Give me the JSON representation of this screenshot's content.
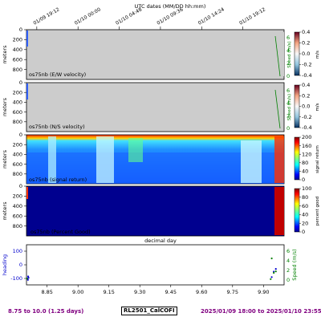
{
  "chart_data": {
    "type": "heatmap",
    "top_axis": {
      "title": "UTC dates (MM/DD hh:mm)",
      "ticks": [
        "01/09 19:12",
        "01/10 00:00",
        "01/10 04:48",
        "01/10 09:36",
        "01/10 14:24",
        "01/10 19:12"
      ],
      "tick_days": [
        8.8,
        9.0,
        9.2,
        9.4,
        9.6,
        9.8
      ]
    },
    "x_axis": {
      "label": "decimal day",
      "range": [
        8.75,
        10.0
      ],
      "ticks": [
        "8.85",
        "9.00",
        "9.15",
        "9.30",
        "9.45",
        "9.60",
        "9.75",
        "9.90"
      ],
      "tick_values": [
        8.85,
        9.0,
        9.15,
        9.3,
        9.45,
        9.6,
        9.75,
        9.9
      ]
    },
    "depth_axis": {
      "label": "meters",
      "range": [
        0,
        1000
      ],
      "ticks": [
        "0",
        "200",
        "400",
        "600",
        "800"
      ]
    },
    "panels": [
      {
        "id": "ew",
        "title": "os75nb (E/W velocity)",
        "colorbar": {
          "label": "m/s",
          "ticks": [
            "0.4",
            "0.2",
            "0.0",
            "-0.2",
            "-0.4"
          ],
          "range": [
            -0.4,
            0.4
          ],
          "colormap": "RdBu"
        },
        "speed_axis": {
          "label": "Speed (m/s)",
          "ticks": [
            "6",
            "4",
            "2",
            "0"
          ]
        },
        "data_coverage_days": [
          [
            8.75,
            8.76
          ],
          [
            9.93,
            10.0
          ]
        ],
        "no_data_color": "#cccccc"
      },
      {
        "id": "ns",
        "title": "os75nb (N/S velocity)",
        "colorbar": {
          "label": "m/s",
          "ticks": [
            "0.4",
            "0.2",
            "0.0",
            "-0.2",
            "-0.4"
          ],
          "range": [
            -0.4,
            0.4
          ],
          "colormap": "RdBu"
        },
        "speed_axis": {
          "label": "Speed (m/s)",
          "ticks": [
            "6",
            "4",
            "2",
            "0"
          ]
        },
        "data_coverage_days": [
          [
            8.75,
            8.76
          ],
          [
            9.93,
            10.0
          ]
        ],
        "no_data_color": "#cccccc"
      },
      {
        "id": "amp",
        "title": "os75nb (signal return)",
        "colorbar": {
          "label": "signal return",
          "ticks": [
            "200",
            "160",
            "120",
            "80",
            "40",
            "0"
          ],
          "range": [
            0,
            200
          ],
          "colormap": "jet"
        }
      },
      {
        "id": "pg",
        "title": "os75nb (Percent Good)",
        "colorbar": {
          "label": "percent good",
          "ticks": [
            "100",
            "80",
            "60",
            "40",
            "20",
            "0"
          ],
          "range": [
            0,
            100
          ],
          "colormap": "jet"
        }
      }
    ],
    "heading_panel": {
      "ylabel": "heading",
      "y_ticks": [
        "100",
        "0",
        "-100"
      ],
      "y_tick_values": [
        100,
        0,
        -100
      ],
      "right_label": "Speed (m/s)",
      "right_ticks": [
        "6",
        "4",
        "2",
        "0"
      ],
      "series": [
        {
          "name": "heading",
          "color": "#0000cc",
          "points": [
            [
              8.755,
              -100
            ],
            [
              8.757,
              -110
            ],
            [
              8.758,
              -85
            ],
            [
              8.76,
              -95
            ],
            [
              9.94,
              -90
            ],
            [
              9.95,
              -50
            ],
            [
              9.96,
              -30
            ]
          ]
        },
        {
          "name": "speed",
          "color": "#008000",
          "points": [
            [
              8.752,
              0.3
            ],
            [
              9.935,
              0.2
            ],
            [
              9.94,
              4.5
            ],
            [
              9.95,
              1.5
            ],
            [
              9.96,
              1.8
            ]
          ]
        }
      ]
    }
  },
  "footer": {
    "left": "8.75 to 10.0 (1.25 days)",
    "center": "RL2501_CalCOFI",
    "right": "2025/01/09 18:00 to 2025/01/10 23:55"
  },
  "colors": {
    "purple": "#800080",
    "grey_nodata": "#cccccc",
    "navy": "#00008f"
  }
}
